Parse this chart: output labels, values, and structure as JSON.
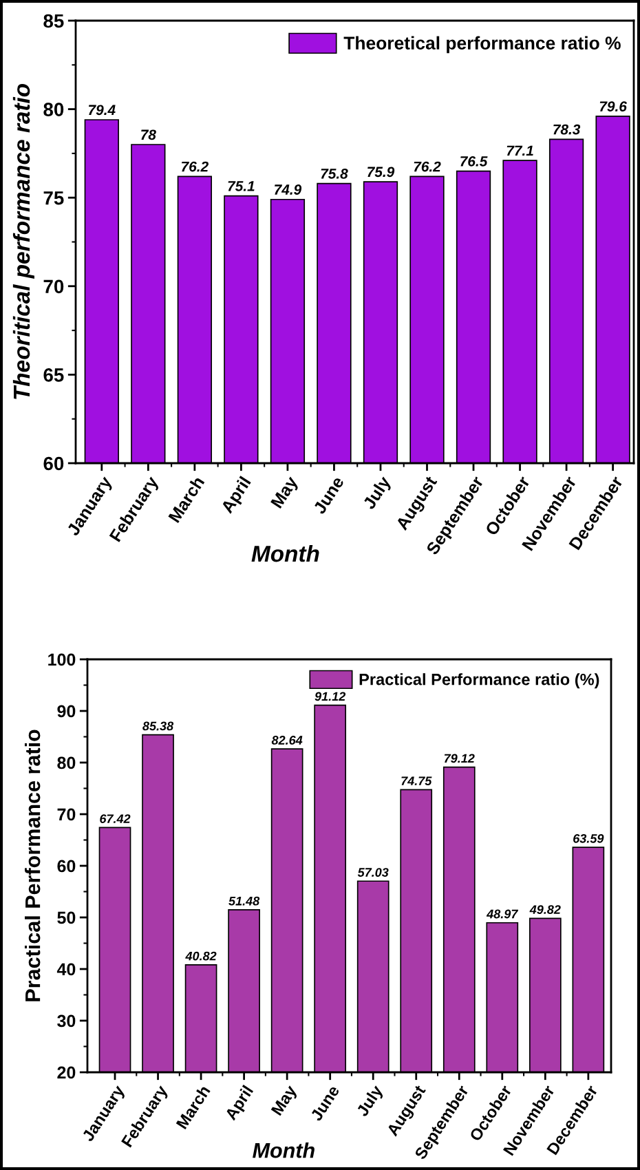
{
  "chart_data": [
    {
      "type": "bar",
      "xlabel": "Month",
      "ylabel": "Theoritical performance ratio",
      "categories": [
        "January",
        "February",
        "March",
        "April",
        "May",
        "June",
        "July",
        "August",
        "September",
        "October",
        "November",
        "December"
      ],
      "series": [
        {
          "name": "Theoretical performance ratio %",
          "color": "#a010e0",
          "values": [
            79.4,
            78,
            76.2,
            75.1,
            74.9,
            75.8,
            75.9,
            76.2,
            76.5,
            77.1,
            78.3,
            79.6
          ]
        }
      ],
      "ylim": [
        60,
        85
      ],
      "yticks": [
        60,
        {
          "value": 62.5,
          "label": null
        },
        65,
        {
          "value": 67.5,
          "label": null
        },
        70,
        {
          "value": 72.5,
          "label": null
        },
        75,
        {
          "value": 77.5,
          "label": null
        },
        80,
        {
          "value": 82.5,
          "label": null
        },
        85
      ],
      "data_labels": true,
      "legend": "top right"
    },
    {
      "type": "bar",
      "xlabel": "Month",
      "ylabel": "Practical Performance ratio",
      "categories": [
        "January",
        "February",
        "March",
        "April",
        "May",
        "June",
        "July",
        "August",
        "September",
        "October",
        "November",
        "December"
      ],
      "series": [
        {
          "name": "Practical Performance ratio (%)",
          "color": "#a83aa8",
          "values": [
            67.42,
            85.38,
            40.82,
            51.48,
            82.64,
            91.12,
            57.03,
            74.75,
            79.12,
            48.97,
            49.82,
            63.59
          ]
        }
      ],
      "ylim": [
        20,
        100
      ],
      "yticks": [
        20,
        {
          "value": 25,
          "label": null
        },
        30,
        {
          "value": 35,
          "label": null
        },
        40,
        {
          "value": 45,
          "label": null
        },
        50,
        {
          "value": 55,
          "label": null
        },
        60,
        {
          "value": 65,
          "label": null
        },
        70,
        {
          "value": 75,
          "label": null
        },
        80,
        {
          "value": 85,
          "label": null
        },
        90,
        {
          "value": 95,
          "label": null
        },
        100
      ],
      "data_labels": true,
      "legend": "top right"
    }
  ]
}
